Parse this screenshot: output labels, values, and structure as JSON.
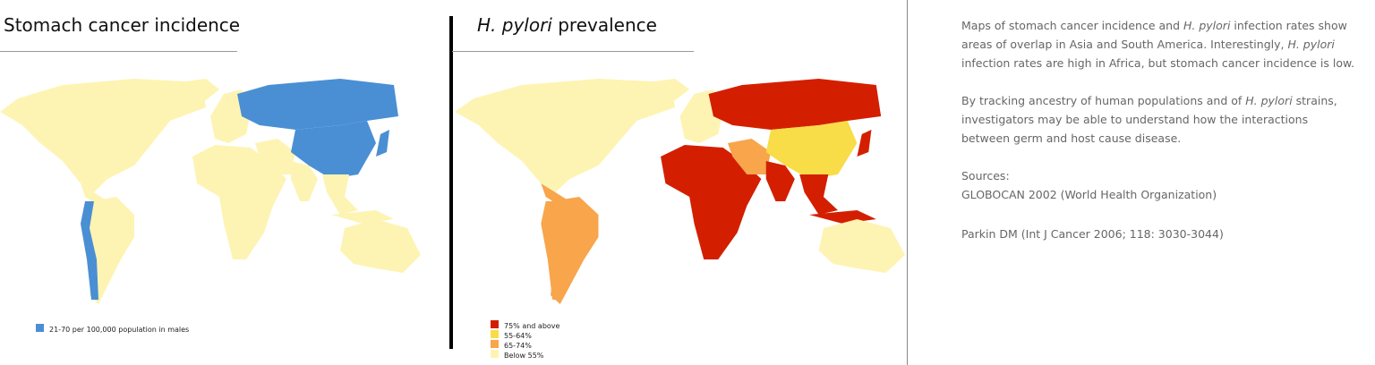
{
  "left": {
    "title": "Stomach cancer incidence",
    "legend": [
      {
        "label": "21-70 per 100,000 population in males",
        "color": "#4a8fd4"
      }
    ]
  },
  "right": {
    "title": [
      {
        "text": "H. pylori",
        "italic": true
      },
      {
        "text": " prevalence"
      }
    ],
    "legend": [
      {
        "label": "75% and above",
        "color": "#d31f00"
      },
      {
        "label": "55-64%",
        "color": "#f8dc48"
      },
      {
        "label": "65-74%",
        "color": "#f8a54c"
      },
      {
        "label": "Below 55%",
        "color": "#fdf4b3"
      }
    ]
  },
  "sidebar": {
    "paragraphs": [
      [
        {
          "text": "Maps of stomach cancer incidence and "
        },
        {
          "text": "H. pylori",
          "italic": true
        },
        {
          "text": " infection rates show areas of overlap in Asia and South America. Interestingly, "
        },
        {
          "text": "H. pylori",
          "italic": true
        },
        {
          "text": " infection rates are high in Africa, but stomach cancer incidence is low."
        }
      ],
      [
        {
          "text": "By tracking ancestry of human populations and of "
        },
        {
          "text": "H. pylori",
          "italic": true
        },
        {
          "text": " strains, investigators may be able to understand how the interactions between germ and host cause disease."
        }
      ]
    ],
    "sources_label": "Sources:",
    "sources": [
      "GLOBOCAN 2002 (World Health Organization)",
      "Parkin DM (Int J Cancer 2006; 118: 3030-3044)"
    ]
  }
}
